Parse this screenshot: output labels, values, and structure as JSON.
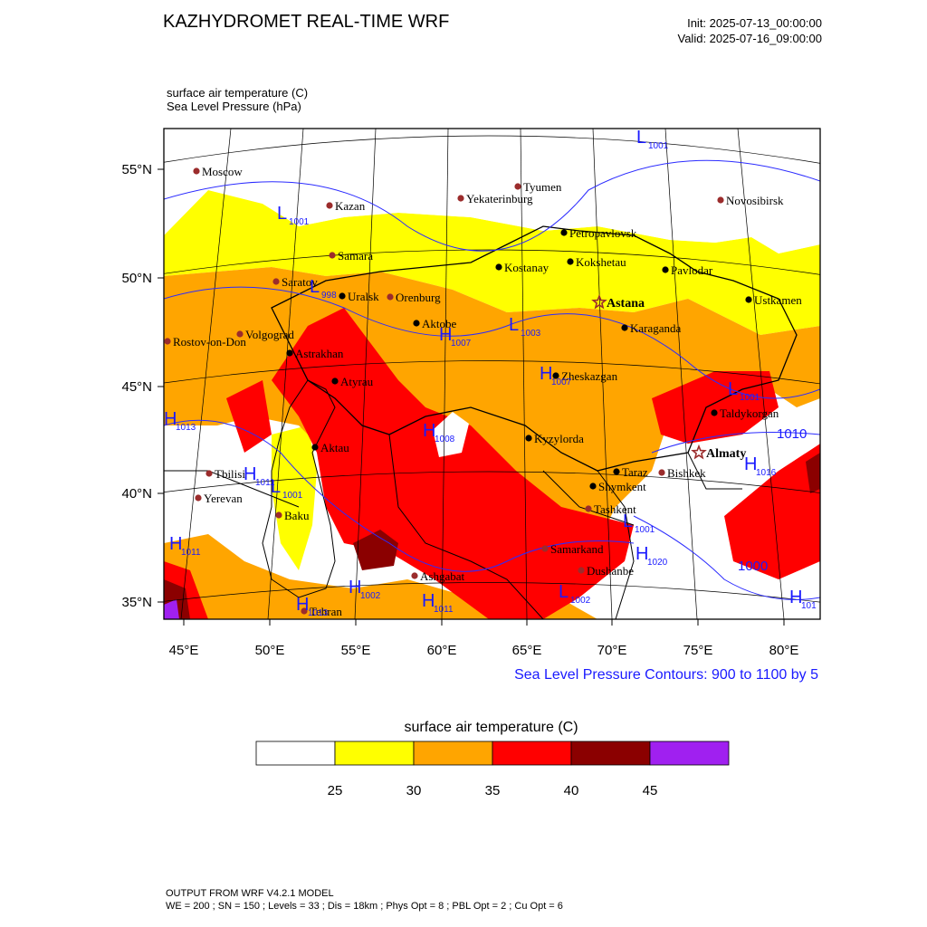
{
  "header": {
    "title": "KAZHYDROMET REAL-TIME WRF",
    "init": "Init: 2025-07-13_00:00:00",
    "valid": "Valid: 2025-07-16_09:00:00",
    "field_line1": "surface air temperature   (C)",
    "field_line2": "Sea Level Pressure   (hPa)"
  },
  "map": {
    "lat_labels": [
      "55°N",
      "50°N",
      "45°N",
      "40°N",
      "35°N"
    ],
    "lon_labels": [
      "45°E",
      "50°E",
      "55°E",
      "60°E",
      "65°E",
      "70°E",
      "75°E",
      "80°E"
    ],
    "contour_note": "Sea Level Pressure Contours: 900 to 1100 by 5",
    "cities_foreign": [
      "Moscow",
      "Kazan",
      "Tyumen",
      "Yekaterinburg",
      "Novosibirsk",
      "Samara",
      "Saratov",
      "Orenburg",
      "Volgograd",
      "Rostov-on-Don",
      "Tbilisi",
      "Yerevan",
      "Baku",
      "Tehran",
      "Ashgabat",
      "Samarkand",
      "Dushanbe",
      "Tashkent",
      "Bishkek"
    ],
    "cities_kz": [
      "Petropavlovsk",
      "Kostanay",
      "Kokshetau",
      "Pavlodar",
      "Uralsk",
      "Aktobe",
      "Karaganda",
      "Ustkamen",
      "Astrakhan",
      "Atyrau",
      "Zheskazgan",
      "Taldykorgan",
      "Aktau",
      "Kyzylorda",
      "Taraz",
      "Shymkent"
    ],
    "capitals": [
      "Astana",
      "Almaty"
    ],
    "pressure_centers": [
      {
        "t": "L",
        "v": "1001"
      },
      {
        "t": "L",
        "v": "1001"
      },
      {
        "t": "L",
        "v": "998"
      },
      {
        "t": "H",
        "v": "1007"
      },
      {
        "t": "L",
        "v": "1003"
      },
      {
        "t": "H",
        "v": "1007"
      },
      {
        "t": "L",
        "v": "1001"
      },
      {
        "t": "H",
        "v": "1013"
      },
      {
        "t": "H",
        "v": "1008"
      },
      {
        "t": "H",
        "v": "1011"
      },
      {
        "t": "L",
        "v": "1001"
      },
      {
        "t": "H",
        "v": "1011"
      },
      {
        "t": "H",
        "v": "1013"
      },
      {
        "t": "H",
        "v": "1002"
      },
      {
        "t": "H",
        "v": "1011"
      },
      {
        "t": "L",
        "v": "1002"
      },
      {
        "t": "L",
        "v": "1001"
      },
      {
        "t": "H",
        "v": "1020"
      },
      {
        "t": "H",
        "v": "1016"
      },
      {
        "t": "H",
        "v": "101"
      }
    ],
    "contour_values": [
      "1010",
      "1000"
    ]
  },
  "legend": {
    "title": "surface air temperature  (C)",
    "colors": [
      "#ffffff",
      "#ffff00",
      "#ffa500",
      "#ff0000",
      "#8b0000",
      "#a020f0"
    ],
    "ticks": [
      "25",
      "30",
      "35",
      "40",
      "45"
    ]
  },
  "footer": {
    "line1": "OUTPUT FROM WRF V4.2.1 MODEL",
    "line2": "WE = 200 ; SN = 150 ; Levels = 33 ; Dis = 18km ; Phys Opt = 8 ; PBL Opt = 2 ; Cu Opt = 6"
  }
}
